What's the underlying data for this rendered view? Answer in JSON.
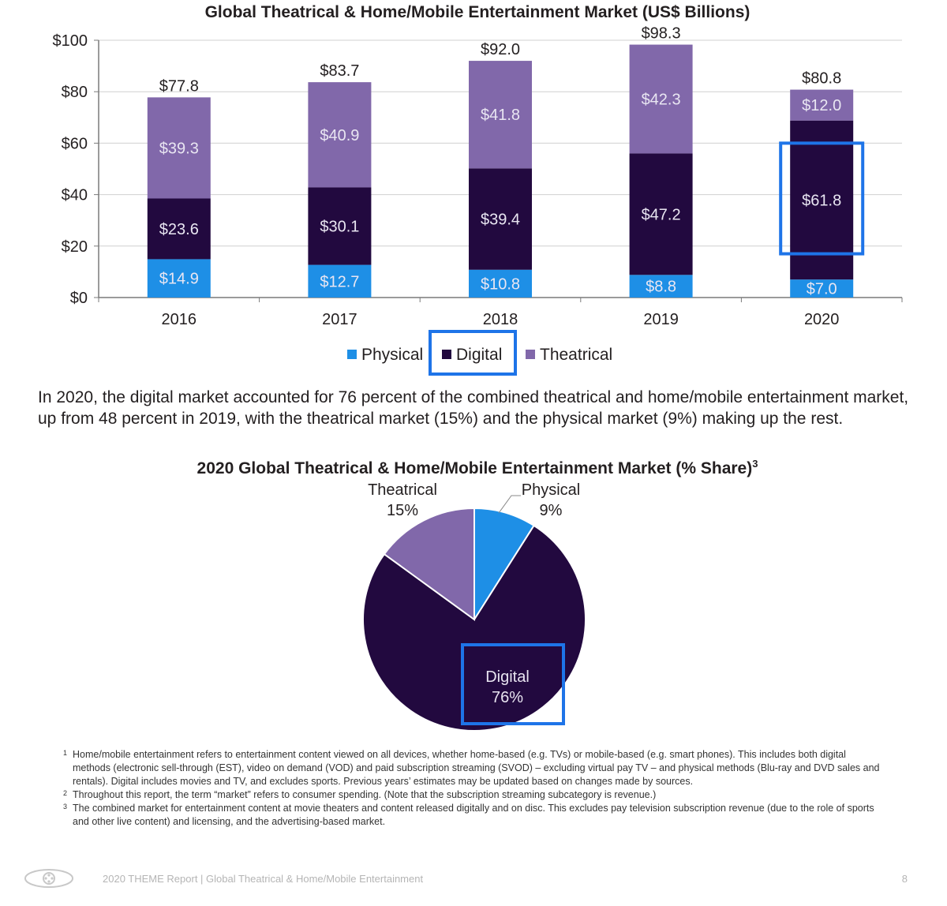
{
  "chart_data": [
    {
      "type": "bar",
      "stacked": true,
      "title": "Global Theatrical & Home/Mobile Entertainment Market (US$ Billions)",
      "categories": [
        "2016",
        "2017",
        "2018",
        "2019",
        "2020"
      ],
      "series": [
        {
          "name": "Physical",
          "color": "#1e8fe6",
          "values": [
            14.9,
            12.7,
            10.8,
            8.8,
            7.0
          ],
          "labels": [
            "$14.9",
            "$12.7",
            "$10.8",
            "$8.8",
            "$7.0"
          ]
        },
        {
          "name": "Digital",
          "color": "#22093f",
          "values": [
            23.6,
            30.1,
            39.4,
            47.2,
            61.8
          ],
          "labels": [
            "$23.6",
            "$30.1",
            "$39.4",
            "$47.2",
            "$61.8"
          ]
        },
        {
          "name": "Theatrical",
          "color": "#8168aa",
          "values": [
            39.3,
            40.9,
            41.8,
            42.3,
            12.0
          ],
          "labels": [
            "$39.3",
            "$40.9",
            "$41.8",
            "$42.3",
            "$12.0"
          ]
        }
      ],
      "totals": [
        "$77.8",
        "$83.7",
        "$92.0",
        "$98.3",
        "$80.8"
      ],
      "total_values": [
        77.8,
        83.7,
        92.0,
        98.3,
        80.8
      ],
      "ylim": [
        0,
        100
      ],
      "yticks": [
        0,
        20,
        40,
        60,
        80,
        100
      ],
      "ytick_labels": [
        "$0",
        "$20",
        "$40",
        "$60",
        "$80",
        "$100"
      ],
      "grid": true,
      "legend": "bottom-center",
      "highlight": {
        "category": "2020",
        "series": "Digital",
        "color": "#1e74e8"
      }
    },
    {
      "type": "pie",
      "title": "2020 Global Theatrical & Home/Mobile Entertainment Market (% Share)",
      "title_sup": "3",
      "slices": [
        {
          "name": "Physical",
          "value": 9,
          "label": "9%",
          "color": "#1e8fe6"
        },
        {
          "name": "Digital",
          "value": 76,
          "label": "76%",
          "color": "#22093f"
        },
        {
          "name": "Theatrical",
          "value": 15,
          "label": "15%",
          "color": "#8168aa"
        }
      ],
      "highlight": {
        "slice": "Digital",
        "color": "#1e74e8"
      }
    }
  ],
  "summary": "In 2020, the digital market accounted for 76 percent of the combined theatrical and home/mobile entertainment market, up from 48 percent in 2019, with the theatrical market (15%) and the physical market (9%) making up the rest.",
  "footnotes": [
    {
      "mark": "1",
      "text": "Home/mobile entertainment refers to entertainment content viewed on all devices, whether home-based (e.g. TVs) or mobile-based (e.g. smart phones). This includes both digital methods (electronic sell-through (EST), video on demand (VOD) and paid subscription streaming (SVOD) – excluding virtual pay TV – and physical methods (Blu-ray and DVD sales and rentals). Digital includes movies and TV, and excludes sports. Previous years’ estimates may be updated based on changes made by sources."
    },
    {
      "mark": "2",
      "text": "Throughout this report, the term “market” refers to consumer spending. (Note that the subscription streaming subcategory is revenue.)"
    },
    {
      "mark": "3",
      "text": "The combined market for entertainment content at movie theaters and content released digitally and on disc. This excludes pay television subscription revenue (due to the role of sports and other live content) and licensing, and the advertising-based market."
    }
  ],
  "footer": {
    "report": "2020 THEME Report | Global Theatrical & Home/Mobile Entertainment",
    "page": "8",
    "logo_icon": "film-reel-logo-icon"
  }
}
